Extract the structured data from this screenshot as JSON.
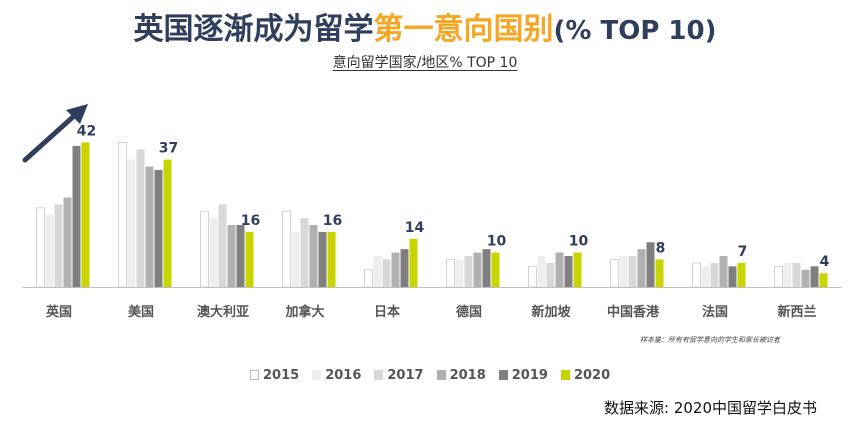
{
  "header": {
    "title_main": "英国逐渐成为留学",
    "title_highlight": "第一意向国别",
    "title_suffix": "(% TOP 10)",
    "subtitle": "意向留学国家/地区% TOP 10"
  },
  "colors": {
    "title": "#2f3e5c",
    "highlight": "#f5a623",
    "arrow": "#2f3e5c",
    "value_label": "#2f3e5c"
  },
  "chart_data": {
    "type": "bar",
    "categories": [
      "英国",
      "美国",
      "澳大利亚",
      "加拿大",
      "日本",
      "德国",
      "新加坡",
      "中国香港",
      "法国",
      "新西兰"
    ],
    "series": [
      {
        "name": "2015",
        "color": "#ffffff",
        "values": [
          23,
          42,
          22,
          22,
          5,
          8,
          6,
          8,
          7,
          6
        ]
      },
      {
        "name": "2016",
        "color": "#eeeeee",
        "values": [
          21,
          37,
          20,
          16,
          9,
          8,
          9,
          9,
          6,
          7
        ]
      },
      {
        "name": "2017",
        "color": "#d8d8d8",
        "values": [
          24,
          40,
          24,
          20,
          8,
          9,
          7,
          9,
          7,
          7
        ]
      },
      {
        "name": "2018",
        "color": "#b0b0b0",
        "values": [
          26,
          35,
          18,
          18,
          10,
          10,
          10,
          11,
          9,
          5
        ]
      },
      {
        "name": "2019",
        "color": "#7f7f7f",
        "values": [
          41,
          34,
          18,
          16,
          11,
          11,
          9,
          13,
          6,
          6
        ]
      },
      {
        "name": "2020",
        "color": "#c8d400",
        "values": [
          42,
          37,
          16,
          16,
          14,
          10,
          10,
          8,
          7,
          4
        ]
      }
    ],
    "data_labels": {
      "series": "2020",
      "values": [
        "42",
        "37",
        "16",
        "16",
        "14",
        "10",
        "10",
        "8",
        "7",
        "4"
      ]
    },
    "ylim": [
      0,
      52
    ],
    "legend_position": "bottom",
    "grid": false,
    "annotation": "样本量：所有有留学意向的学生和家长被访者",
    "trend_arrow": "up"
  },
  "source": "数据来源: 2020中国留学白皮书"
}
